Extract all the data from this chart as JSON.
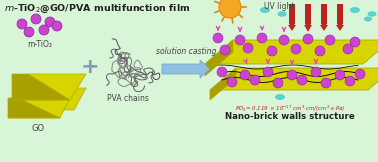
{
  "title": "m-TiO₂@GO/PVA multifunction film",
  "subtitle_red": "Po₂= 0.119 × 10⁻¹⁷ cm³·cm/(cm²·s·Pa)",
  "subtitle_black": "Nano-brick walls structure",
  "label_mTiO2": "m-TiO₂",
  "label_GO": "GO",
  "label_PVA": "PVA chains",
  "label_UV": "UV light",
  "label_casting": "solution casting",
  "bg_color": "#d8f5d8",
  "go_color": "#d8d400",
  "go_side_color": "#a8a000",
  "go_edge": "#b0aa00",
  "particle_color": "#cc44cc",
  "particle_edge": "#8822aa",
  "arrow_color": "#90c0e0",
  "arrow_edge": "#70a0c0",
  "sun_body": "#f5a623",
  "sun_edge": "#e08800",
  "red_color": "#bb2222",
  "cyan_color": "#40cccc",
  "pink_color": "#ee44aa",
  "pva_color": "#777777",
  "wave_color": "#111111",
  "text_dark": "#222222",
  "text_gray": "#444444",
  "plus_color": "#8899bb"
}
